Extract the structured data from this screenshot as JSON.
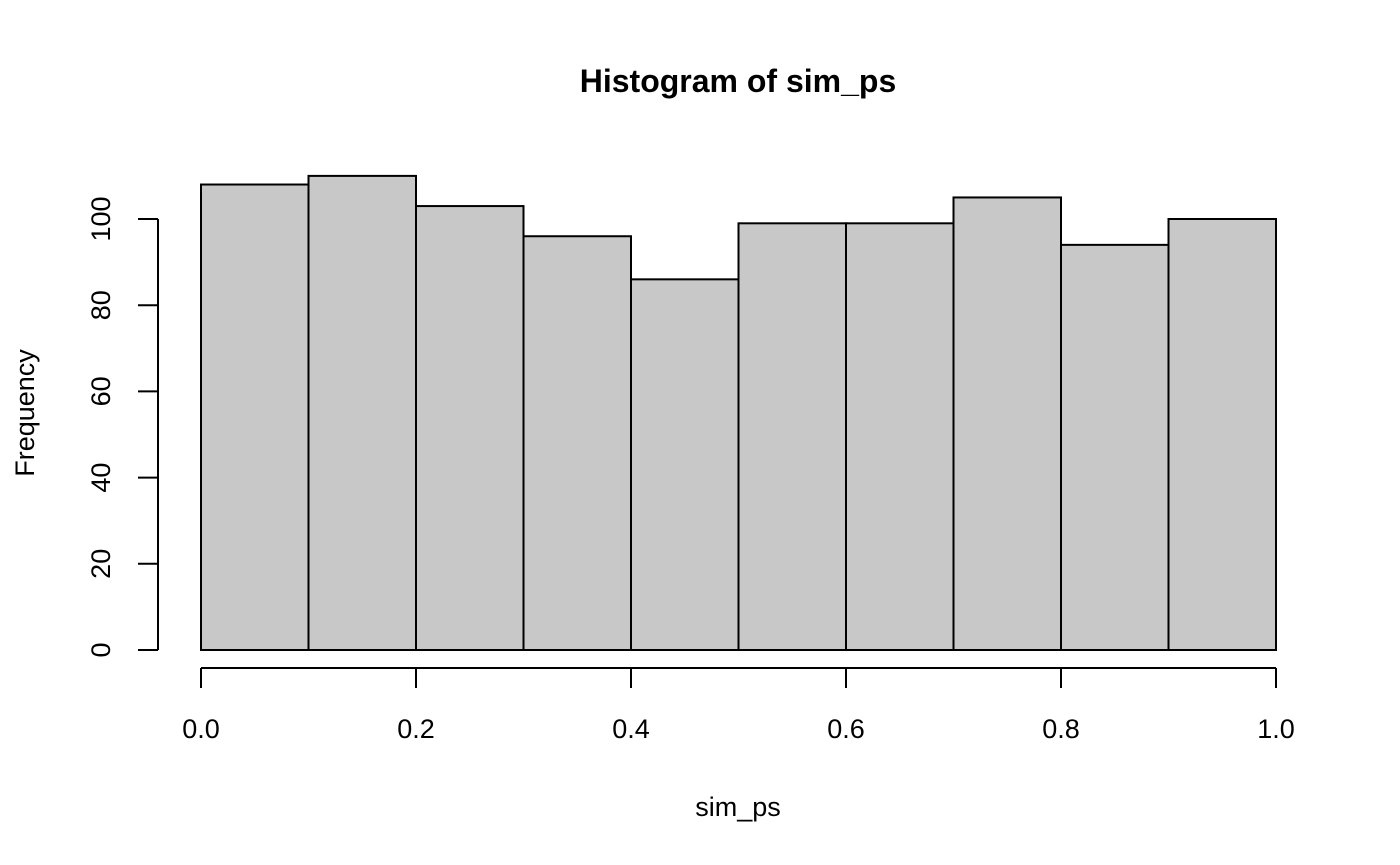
{
  "chart_data": {
    "type": "bar",
    "title": "Histogram of sim_ps",
    "xlabel": "sim_ps",
    "ylabel": "Frequency",
    "bins": [
      {
        "start": 0.0,
        "end": 0.1,
        "count": 108
      },
      {
        "start": 0.1,
        "end": 0.2,
        "count": 110
      },
      {
        "start": 0.2,
        "end": 0.3,
        "count": 103
      },
      {
        "start": 0.3,
        "end": 0.4,
        "count": 96
      },
      {
        "start": 0.4,
        "end": 0.5,
        "count": 86
      },
      {
        "start": 0.5,
        "end": 0.6,
        "count": 99
      },
      {
        "start": 0.6,
        "end": 0.7,
        "count": 99
      },
      {
        "start": 0.7,
        "end": 0.8,
        "count": 105
      },
      {
        "start": 0.8,
        "end": 0.9,
        "count": 94
      },
      {
        "start": 0.9,
        "end": 1.0,
        "count": 100
      }
    ],
    "xlim": [
      0.0,
      1.0
    ],
    "ylim": [
      0,
      110
    ],
    "x_ticks": [
      {
        "value": 0.0,
        "label": "0.0"
      },
      {
        "value": 0.2,
        "label": "0.2"
      },
      {
        "value": 0.4,
        "label": "0.4"
      },
      {
        "value": 0.6,
        "label": "0.6"
      },
      {
        "value": 0.8,
        "label": "0.8"
      },
      {
        "value": 1.0,
        "label": "1.0"
      }
    ],
    "y_ticks": [
      {
        "value": 0,
        "label": "0"
      },
      {
        "value": 20,
        "label": "20"
      },
      {
        "value": 40,
        "label": "40"
      },
      {
        "value": 60,
        "label": "60"
      },
      {
        "value": 80,
        "label": "80"
      },
      {
        "value": 100,
        "label": "100"
      }
    ],
    "bar_color": "#c8c8c8",
    "grid": false,
    "legend": "none"
  }
}
